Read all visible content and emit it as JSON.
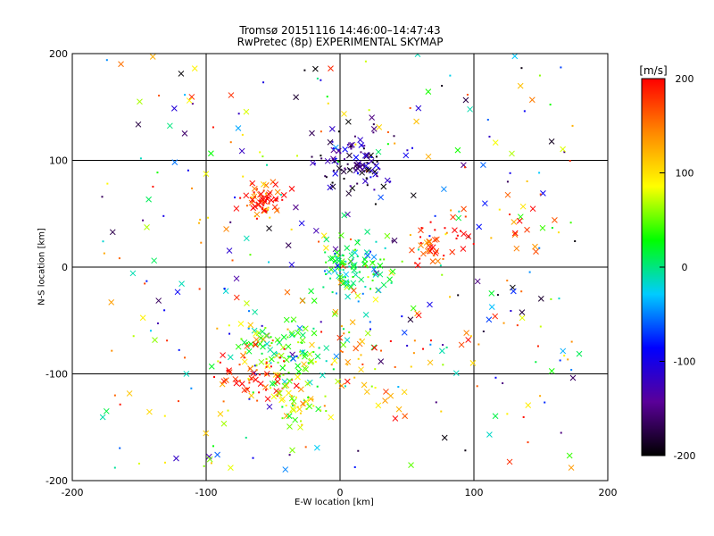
{
  "chart_data": {
    "type": "scatter",
    "title": "Tromsø 20151116 14:46:00–14:47:43",
    "subtitle": "RwPretec (8p) EXPERIMENTAL SKYMAP",
    "xlabel": "E-W location [km]",
    "ylabel": "N-S location [km]",
    "xlim": [
      -200,
      200
    ],
    "ylim": [
      -200,
      200
    ],
    "xticks": [
      "-200",
      "-100",
      "0",
      "100",
      "200"
    ],
    "yticks": [
      "-200",
      "-100",
      "0",
      "100",
      "200"
    ],
    "grid_lines": {
      "x": [
        -100,
        0,
        100
      ],
      "y": [
        -100,
        0,
        100
      ]
    },
    "markers": [
      "cross",
      "dot"
    ],
    "colorbar": {
      "label": "[m/s]",
      "min": -200,
      "max": 200,
      "ticks": [
        "200",
        "100",
        "0",
        "-100",
        "-200"
      ],
      "colormap": [
        "#000000",
        "#5a0099",
        "#0000ff",
        "#00ccff",
        "#00ff00",
        "#ffff00",
        "#ff8800",
        "#ff0000"
      ]
    },
    "clusters": [
      {
        "x": 8,
        "y": 100,
        "spread": 14,
        "v": -150,
        "n": 110
      },
      {
        "x": -58,
        "y": 62,
        "spread": 8,
        "v": 200,
        "n": 70
      },
      {
        "x": 10,
        "y": 2,
        "spread": 14,
        "v": 20,
        "n": 120
      },
      {
        "x": -40,
        "y": -80,
        "spread": 20,
        "v": 40,
        "n": 130
      },
      {
        "x": -65,
        "y": -100,
        "spread": 14,
        "v": 180,
        "n": 60
      },
      {
        "x": 70,
        "y": 20,
        "spread": 10,
        "v": 190,
        "n": 40
      },
      {
        "x": -30,
        "y": -130,
        "spread": 10,
        "v": 80,
        "n": 40
      },
      {
        "x": 30,
        "y": -90,
        "spread": 30,
        "v": 150,
        "n": 50
      },
      {
        "x": 120,
        "y": 40,
        "spread": 25,
        "v": 170,
        "n": 25
      }
    ],
    "background_points": 320
  }
}
